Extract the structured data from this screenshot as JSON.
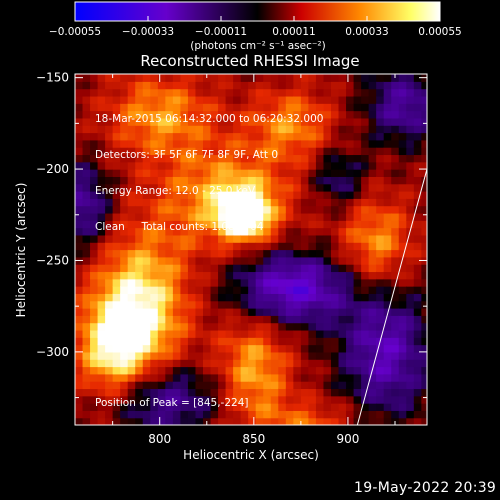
{
  "chart_data": {
    "type": "heatmap",
    "title": "Reconstructed RHESSI Image",
    "xlabel": "Heliocentric X (arcsec)",
    "ylabel": "Heliocentric Y (arcsec)",
    "xlim": [
      755,
      942
    ],
    "ylim": [
      -340,
      -148
    ],
    "x_ticks": [
      800,
      850,
      900
    ],
    "y_ticks": [
      -150,
      -200,
      -250,
      -300
    ],
    "colorbar": {
      "ticks": [
        -0.00055,
        -0.00033,
        -0.00011,
        0.00011,
        0.00033,
        0.00055
      ],
      "tick_labels": [
        "-0.00055",
        "-0.00033",
        "-0.00011",
        "0.00011",
        "0.00033",
        "0.00055"
      ],
      "range": [
        -0.00055,
        0.00055
      ],
      "colors": [
        "#0000ff",
        "#6600cc",
        "#000000",
        "#cc0000",
        "#ff8800",
        "#ffff66",
        "#ffffff"
      ],
      "units": "(photons cm⁻² s⁻¹ asec⁻²)"
    },
    "annotations": {
      "time_range": "18-Mar-2015 06:14:32.000 to 06:20:32.000",
      "detectors": "Detectors: 3F 5F 6F 7F 8F 9F, Att 0",
      "energy_range": "Energy Range: 12.0 - 25.0 keV",
      "method_counts": "Clean     Total counts: 1.08E+04",
      "peak": "Position of Peak = [845,-224]"
    },
    "peak_position": [
      845,
      -224
    ],
    "limb_line": [
      [
        905,
        -340
      ],
      [
        942,
        -200
      ]
    ],
    "sources": [
      {
        "x": 845,
        "y": -224,
        "amp": 1.0,
        "sx": 9,
        "sy": 9
      },
      {
        "x": 835,
        "y": -215,
        "amp": 0.55,
        "sx": 25,
        "sy": 20
      },
      {
        "x": 790,
        "y": -275,
        "amp": 0.75,
        "sx": 18,
        "sy": 28
      },
      {
        "x": 775,
        "y": -300,
        "amp": 0.6,
        "sx": 14,
        "sy": 20
      },
      {
        "x": 850,
        "y": -310,
        "amp": 0.55,
        "sx": 14,
        "sy": 22
      },
      {
        "x": 915,
        "y": -240,
        "amp": 0.5,
        "sx": 14,
        "sy": 18
      },
      {
        "x": 800,
        "y": -170,
        "amp": 0.5,
        "sx": 20,
        "sy": 16
      },
      {
        "x": 870,
        "y": -175,
        "amp": 0.45,
        "sx": 16,
        "sy": 14
      },
      {
        "x": 880,
        "y": -340,
        "amp": 0.35,
        "sx": 18,
        "sy": 10
      }
    ],
    "negative_regions": [
      {
        "x": 870,
        "y": -265,
        "amp": 0.75,
        "sx": 22,
        "sy": 14
      },
      {
        "x": 920,
        "y": -300,
        "amp": 0.6,
        "sx": 16,
        "sy": 24
      },
      {
        "x": 800,
        "y": -325,
        "amp": 0.55,
        "sx": 22,
        "sy": 14
      },
      {
        "x": 760,
        "y": -220,
        "amp": 0.5,
        "sx": 10,
        "sy": 16
      },
      {
        "x": 930,
        "y": -165,
        "amp": 0.5,
        "sx": 14,
        "sy": 14
      },
      {
        "x": 895,
        "y": -205,
        "amp": 0.35,
        "sx": 10,
        "sy": 12
      }
    ]
  },
  "timestamp": "19-May-2022 20:39"
}
